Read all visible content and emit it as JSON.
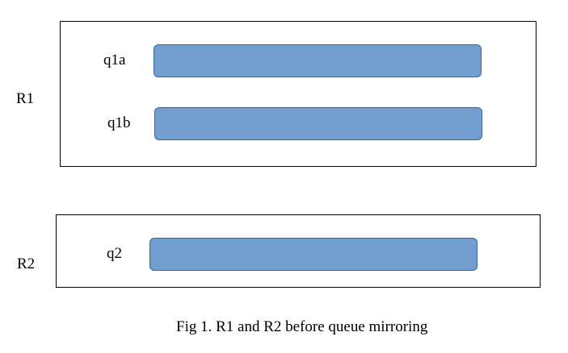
{
  "diagram": {
    "routers": [
      {
        "label": "R1",
        "queues": [
          {
            "label": "q1a"
          },
          {
            "label": "q1b"
          }
        ]
      },
      {
        "label": "R2",
        "queues": [
          {
            "label": "q2"
          }
        ]
      }
    ],
    "caption": "Fig 1. R1 and R2 before queue mirroring",
    "colors": {
      "queue_fill": "#729fcf",
      "queue_border": "#3465a4",
      "box_border": "#000000"
    }
  }
}
